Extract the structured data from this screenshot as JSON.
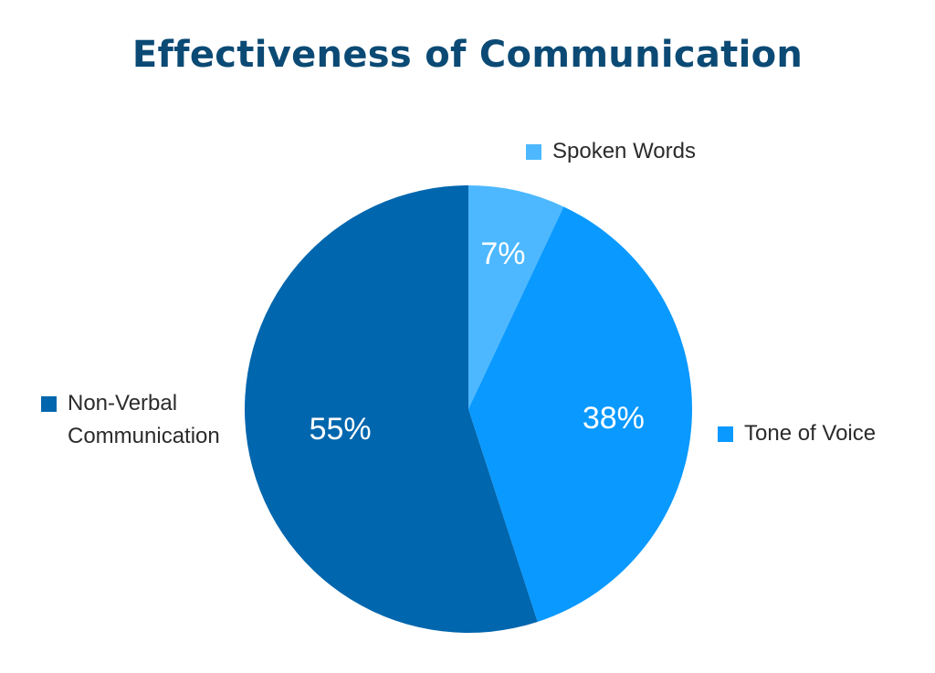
{
  "chart_data": {
    "type": "pie",
    "title": "Effectiveness of Communication",
    "slices": [
      {
        "name": "Spoken Words",
        "value": 7,
        "label": "7%",
        "color": "#4db8ff"
      },
      {
        "name": "Tone of Voice",
        "value": 38,
        "label": "38%",
        "color": "#0a99ff"
      },
      {
        "name": "Non-Verbal Communication",
        "value": 55,
        "label": "55%",
        "color": "#0066ad"
      }
    ],
    "legend": [
      {
        "label": "Spoken Words",
        "color": "#4db8ff"
      },
      {
        "label": "Tone of Voice",
        "color": "#0a99ff"
      },
      {
        "label": "Non-Verbal\nCommunication",
        "color": "#0066ad"
      }
    ],
    "start_angle": "12 o'clock",
    "direction": "clockwise"
  },
  "colors": {
    "title": "#0b4a74",
    "background": "#ffffff"
  }
}
